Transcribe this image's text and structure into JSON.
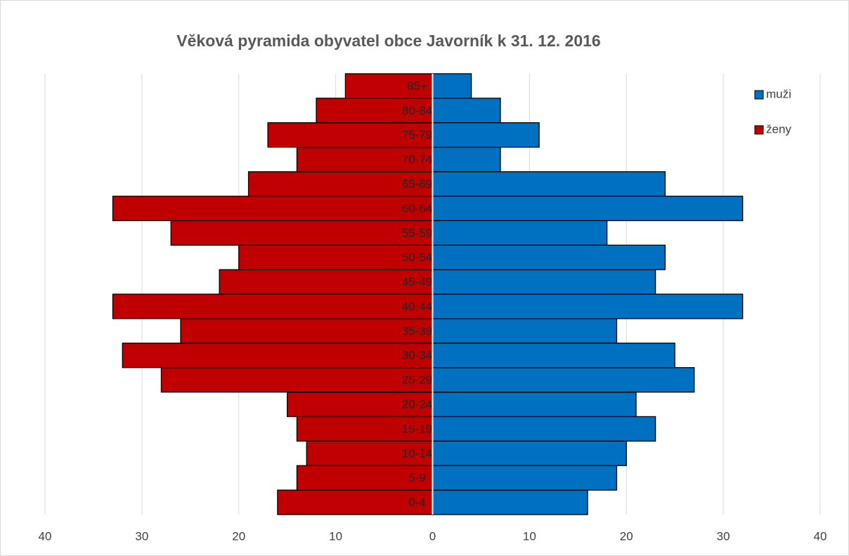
{
  "chart_data": {
    "type": "pyramid",
    "title": "Věková pyramida obyvatel obce Javorník k 31. 12. 2016",
    "categories": [
      "0-4",
      "5-9",
      "10-14",
      "15-19",
      "20-24",
      "25-29",
      "30-34",
      "35-39",
      "40-44",
      "45-49",
      "50-54",
      "55-59",
      "60-64",
      "65-69",
      "70-74",
      "75-79",
      "80-84",
      "85+"
    ],
    "series": [
      {
        "name": "muži",
        "color": "#0070c0",
        "values": [
          16,
          19,
          20,
          23,
          21,
          27,
          25,
          19,
          32,
          23,
          24,
          18,
          32,
          24,
          7,
          11,
          7,
          4
        ]
      },
      {
        "name": "ženy",
        "color": "#c00000",
        "values": [
          -16,
          -14,
          -13,
          -14,
          -15,
          -28,
          -32,
          -26,
          -33,
          -22,
          -20,
          -27,
          -33,
          -19,
          -14,
          -17,
          -12,
          -9
        ]
      }
    ],
    "xlim": [
      -40,
      40
    ],
    "xticks": [
      {
        "value": -40,
        "label": "40"
      },
      {
        "value": -30,
        "label": "30"
      },
      {
        "value": -20,
        "label": "20"
      },
      {
        "value": -10,
        "label": "10"
      },
      0,
      10,
      20,
      30,
      40
    ],
    "grid": true,
    "legend": "top-right"
  }
}
